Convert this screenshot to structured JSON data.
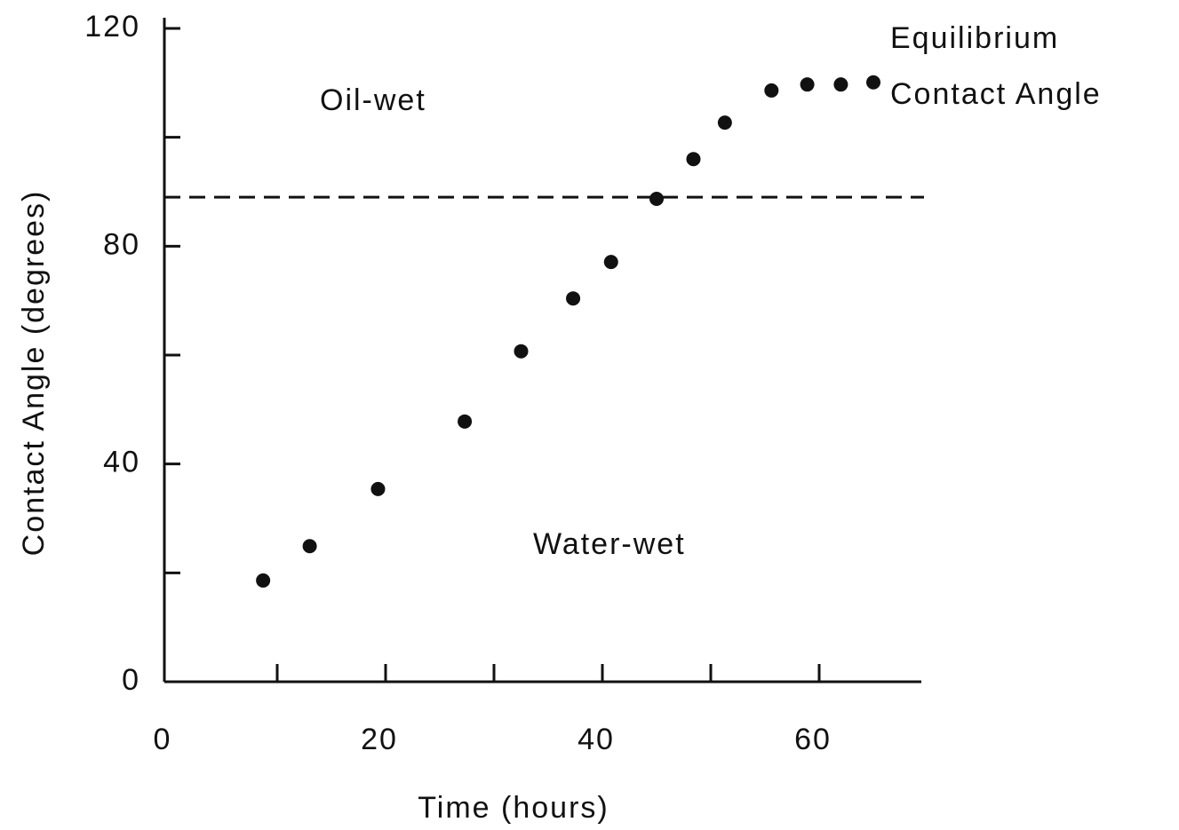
{
  "chart_data": {
    "type": "scatter",
    "xlabel": "Time (hours)",
    "ylabel": "Contact Angle (degrees)",
    "x": [
      8.7,
      13.0,
      19.3,
      27.3,
      32.5,
      37.3,
      40.8,
      45.0,
      48.4,
      51.3,
      55.6,
      58.9,
      62.0,
      65.0
    ],
    "values": [
      18.6,
      24.9,
      35.4,
      47.8,
      60.7,
      70.4,
      77.1,
      88.7,
      96.0,
      102.7,
      108.6,
      109.7,
      109.7,
      110.1
    ],
    "color": "#111111",
    "xlim": [
      0,
      70
    ],
    "xticks": [
      0,
      20,
      40,
      60
    ],
    "xminor": [
      10,
      30,
      50
    ],
    "ylim": [
      0,
      120
    ],
    "yticks": [
      0,
      40,
      80,
      120
    ],
    "yminor": [
      20,
      60,
      100
    ],
    "reference_line": 89,
    "annotations": [
      "Oil-wet",
      "Water-wet",
      "Equilibrium",
      "Contact Angle"
    ]
  }
}
